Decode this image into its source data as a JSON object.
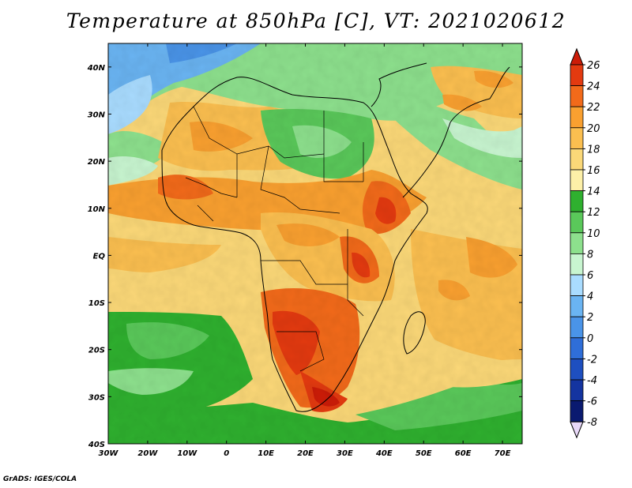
{
  "title": "Temperature at 850hPa [C], VT: 2021020612",
  "credit": "GrADS: IGES/COLA",
  "map": {
    "extent": {
      "lon": [
        -30,
        75
      ],
      "lat": [
        -40,
        45
      ]
    },
    "lon_ticks": [
      "30W",
      "20W",
      "10W",
      "0",
      "10E",
      "20E",
      "30E",
      "40E",
      "50E",
      "60E",
      "70E"
    ],
    "lat_ticks": [
      "40N",
      "30N",
      "20N",
      "10N",
      "EQ",
      "10S",
      "20S",
      "30S",
      "40S"
    ]
  },
  "colorbar": {
    "labels": [
      "26",
      "24",
      "22",
      "20",
      "18",
      "16",
      "14",
      "12",
      "10",
      "8",
      "6",
      "4",
      "2",
      "0",
      "-2",
      "-4",
      "-6",
      "-8"
    ],
    "colors": [
      "#e33a10",
      "#f26a1a",
      "#f9a030",
      "#fbbf50",
      "#fbd878",
      "#fdf0a8",
      "#2fb02f",
      "#5ac85a",
      "#8de08d",
      "#c8f5d0",
      "#a9dcff",
      "#6ab4f2",
      "#4a94e8",
      "#2f6ed8",
      "#1e4fc0",
      "#1434a0",
      "#0a1a70"
    ],
    "over_color": "#cc1c08",
    "under_color": "#e8d8f8"
  }
}
